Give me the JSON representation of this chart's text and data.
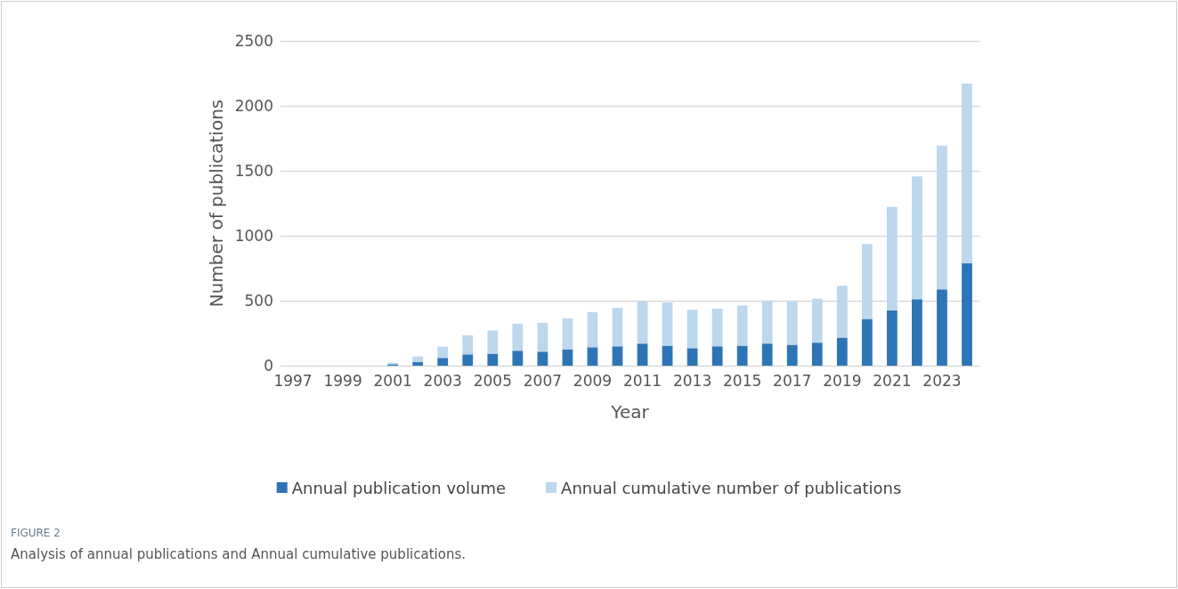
{
  "chart_data": {
    "type": "bar",
    "stacked": true,
    "xlabel": "Year",
    "ylabel": "Number of publications",
    "categories": [
      "1997",
      null,
      "1999",
      null,
      "2001",
      null,
      "2003",
      null,
      "2005",
      null,
      "2007",
      null,
      "2009",
      null,
      "2011",
      null,
      "2013",
      null,
      "2015",
      null,
      "2017",
      null,
      "2019",
      null,
      "2021",
      null,
      "2023",
      null
    ],
    "series": [
      {
        "name": "Annual publication volume",
        "color": "#2e75b6",
        "values": [
          0,
          0,
          0,
          0,
          11,
          28,
          60,
          87,
          92,
          115,
          108,
          126,
          142,
          149,
          170,
          154,
          135,
          149,
          154,
          170,
          161,
          177,
          216,
          360,
          427,
          512,
          587,
          789
        ]
      },
      {
        "name": "Annual cumulative number of publications",
        "color": "#bdd7ee",
        "values": [
          0,
          0,
          0,
          0,
          12,
          43,
          87,
          147,
          179,
          208,
          222,
          239,
          271,
          296,
          325,
          332,
          296,
          291,
          309,
          328,
          334,
          339,
          399,
          576,
          796,
          945,
          1106,
          1383
        ]
      }
    ],
    "ylim": [
      0,
      2500
    ],
    "yticks": [
      0,
      500,
      1000,
      1500,
      2000,
      2500
    ],
    "grid": "y",
    "legend": "bottom",
    "annotations": [
      "FIGURE 2",
      "Analysis of annual publications and Annual cumulative publications."
    ]
  }
}
